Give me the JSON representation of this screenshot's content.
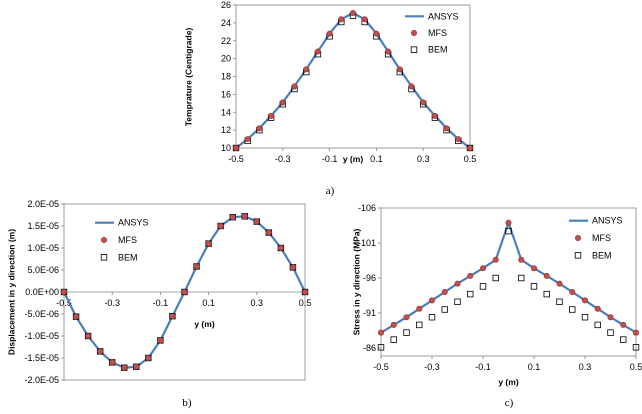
{
  "chart_data": [
    {
      "type": "line",
      "id": "a",
      "caption": "a)",
      "xlabel": "y (m)",
      "ylabel": "Temprature (Centigrade)",
      "xlim": [
        -0.5,
        0.5
      ],
      "ylim": [
        10,
        26
      ],
      "xticks": [
        "-0.5",
        "-0.3",
        "-0.1",
        "0.1",
        "0.3",
        "0.5"
      ],
      "yticks": [
        "10",
        "12",
        "14",
        "16",
        "18",
        "20",
        "22",
        "24",
        "26"
      ],
      "legend": [
        "ANSYS",
        "MFS",
        "BEM"
      ],
      "series": [
        {
          "name": "ANSYS",
          "x": [
            -0.5,
            -0.45,
            -0.4,
            -0.35,
            -0.3,
            -0.25,
            -0.2,
            -0.15,
            -0.1,
            -0.05,
            0,
            0.05,
            0.1,
            0.15,
            0.2,
            0.25,
            0.3,
            0.35,
            0.4,
            0.45,
            0.5
          ],
          "y": [
            10,
            11,
            12.2,
            13.6,
            15.1,
            16.9,
            18.8,
            20.8,
            22.8,
            24.4,
            25.1,
            24.4,
            22.8,
            20.8,
            18.8,
            16.9,
            15.1,
            13.6,
            12.2,
            11,
            10
          ]
        },
        {
          "name": "MFS",
          "x": [
            -0.5,
            -0.45,
            -0.4,
            -0.35,
            -0.3,
            -0.25,
            -0.2,
            -0.15,
            -0.1,
            -0.05,
            0,
            0.05,
            0.1,
            0.15,
            0.2,
            0.25,
            0.3,
            0.35,
            0.4,
            0.45,
            0.5
          ],
          "y": [
            10,
            11,
            12.2,
            13.6,
            15.1,
            16.9,
            18.8,
            20.8,
            22.8,
            24.4,
            25.1,
            24.4,
            22.8,
            20.8,
            18.8,
            16.9,
            15.1,
            13.6,
            12.2,
            11,
            10
          ]
        },
        {
          "name": "BEM",
          "x": [
            -0.5,
            -0.45,
            -0.4,
            -0.35,
            -0.3,
            -0.25,
            -0.2,
            -0.15,
            -0.1,
            -0.05,
            0,
            0.05,
            0.1,
            0.15,
            0.2,
            0.25,
            0.3,
            0.35,
            0.4,
            0.45,
            0.5
          ],
          "y": [
            10,
            10.8,
            12,
            13.4,
            14.9,
            16.6,
            18.5,
            20.5,
            22.5,
            24.1,
            24.8,
            24.1,
            22.5,
            20.5,
            18.5,
            16.6,
            14.9,
            13.4,
            12,
            10.8,
            10
          ]
        }
      ]
    },
    {
      "type": "line",
      "id": "b",
      "caption": "b)",
      "xlabel": "y (m)",
      "ylabel": "Displacement in y direction (m)",
      "xlim": [
        -0.5,
        0.5
      ],
      "ylim": [
        -2e-05,
        2e-05
      ],
      "xticks": [
        "-0.5",
        "-0.3",
        "-0.1",
        "0.1",
        "0.3",
        "0.5"
      ],
      "yticks": [
        "2.0E-05",
        "1.5E-05",
        "1.0E-05",
        "5.0E-06",
        "0.0E+00",
        "-5.0E-06",
        "-1.0E-05",
        "-1.5E-05",
        "-2.0E-05"
      ],
      "legend": [
        "ANSYS",
        "MFS",
        "BEM"
      ],
      "series": [
        {
          "name": "ANSYS",
          "x": [
            -0.5,
            -0.45,
            -0.4,
            -0.35,
            -0.3,
            -0.25,
            -0.2,
            -0.15,
            -0.1,
            -0.05,
            0,
            0.05,
            0.1,
            0.15,
            0.2,
            0.25,
            0.3,
            0.35,
            0.4,
            0.45,
            0.5
          ],
          "y": [
            0,
            -5.6e-06,
            -1e-05,
            -1.35e-05,
            -1.6e-05,
            -1.72e-05,
            -1.7e-05,
            -1.5e-05,
            -1.1e-05,
            -5.5e-06,
            0,
            5.8e-06,
            1.1e-05,
            1.5e-05,
            1.7e-05,
            1.72e-05,
            1.6e-05,
            1.35e-05,
            1e-05,
            5.6e-06,
            0
          ]
        },
        {
          "name": "MFS",
          "x": [
            -0.5,
            -0.45,
            -0.4,
            -0.35,
            -0.3,
            -0.25,
            -0.2,
            -0.15,
            -0.1,
            -0.05,
            0,
            0.05,
            0.1,
            0.15,
            0.2,
            0.25,
            0.3,
            0.35,
            0.4,
            0.45,
            0.5
          ],
          "y": [
            0,
            -5.6e-06,
            -1e-05,
            -1.35e-05,
            -1.6e-05,
            -1.72e-05,
            -1.7e-05,
            -1.5e-05,
            -1.1e-05,
            -5.5e-06,
            0,
            5.8e-06,
            1.1e-05,
            1.5e-05,
            1.7e-05,
            1.72e-05,
            1.6e-05,
            1.35e-05,
            1e-05,
            5.6e-06,
            0
          ]
        },
        {
          "name": "BEM",
          "x": [
            -0.5,
            -0.45,
            -0.4,
            -0.35,
            -0.3,
            -0.25,
            -0.2,
            -0.15,
            -0.1,
            -0.05,
            0,
            0.05,
            0.1,
            0.15,
            0.2,
            0.25,
            0.3,
            0.35,
            0.4,
            0.45,
            0.5
          ],
          "y": [
            0,
            -5.6e-06,
            -1e-05,
            -1.35e-05,
            -1.6e-05,
            -1.72e-05,
            -1.7e-05,
            -1.5e-05,
            -1.1e-05,
            -5.5e-06,
            0,
            5.8e-06,
            1.1e-05,
            1.5e-05,
            1.7e-05,
            1.72e-05,
            1.6e-05,
            1.35e-05,
            1e-05,
            5.6e-06,
            0
          ]
        }
      ]
    },
    {
      "type": "line",
      "id": "c",
      "caption": "c)",
      "xlabel": "y (m)",
      "ylabel": "Stress in y direction (MPa)",
      "xlim": [
        -0.5,
        0.5
      ],
      "ylim": [
        -106,
        -85
      ],
      "invert_y": true,
      "xticks": [
        "-0.5",
        "-0.3",
        "-0.1",
        "0.1",
        "0.3",
        "0.5"
      ],
      "yticks": [
        "-106",
        "-101",
        "-96",
        "-91",
        "-86"
      ],
      "legend": [
        "ANSYS",
        "MFS",
        "BEM"
      ],
      "series": [
        {
          "name": "ANSYS",
          "x": [
            -0.5,
            -0.45,
            -0.4,
            -0.35,
            -0.3,
            -0.25,
            -0.2,
            -0.15,
            -0.1,
            -0.05,
            0,
            0.05,
            0.1,
            0.15,
            0.2,
            0.25,
            0.3,
            0.35,
            0.4,
            0.45,
            0.5
          ],
          "y": [
            -88.2,
            -89.3,
            -90.4,
            -91.6,
            -92.8,
            -94.0,
            -95.2,
            -96.3,
            -97.4,
            -98.6,
            -103.9,
            -98.6,
            -97.4,
            -96.3,
            -95.2,
            -94.0,
            -92.8,
            -91.6,
            -90.4,
            -89.3,
            -88.2
          ]
        },
        {
          "name": "MFS",
          "x": [
            -0.5,
            -0.45,
            -0.4,
            -0.35,
            -0.3,
            -0.25,
            -0.2,
            -0.15,
            -0.1,
            -0.05,
            0,
            0.05,
            0.1,
            0.15,
            0.2,
            0.25,
            0.3,
            0.35,
            0.4,
            0.45,
            0.5
          ],
          "y": [
            -88.2,
            -89.3,
            -90.4,
            -91.6,
            -92.8,
            -94.0,
            -95.2,
            -96.3,
            -97.4,
            -98.6,
            -103.9,
            -98.6,
            -97.4,
            -96.3,
            -95.2,
            -94.0,
            -92.8,
            -91.6,
            -90.4,
            -89.3,
            -88.2
          ]
        },
        {
          "name": "BEM",
          "x": [
            -0.5,
            -0.45,
            -0.4,
            -0.35,
            -0.3,
            -0.25,
            -0.2,
            -0.15,
            -0.1,
            -0.05,
            0,
            0.05,
            0.1,
            0.15,
            0.2,
            0.25,
            0.3,
            0.35,
            0.4,
            0.45,
            0.5
          ],
          "y": [
            -86.1,
            -87.2,
            -88.2,
            -89.3,
            -90.4,
            -91.5,
            -92.6,
            -93.7,
            -94.8,
            -96.0,
            -102.7,
            -96.0,
            -94.8,
            -93.7,
            -92.6,
            -91.5,
            -90.4,
            -89.3,
            -88.2,
            -87.2,
            -86.1
          ]
        }
      ]
    }
  ],
  "colors": {
    "ansys": "#4a7ebb",
    "mfs_fill": "#c0504d",
    "mfs_stroke": "#8c2f2c",
    "bem_stroke": "#000000",
    "grid": "#d9d9d9"
  }
}
